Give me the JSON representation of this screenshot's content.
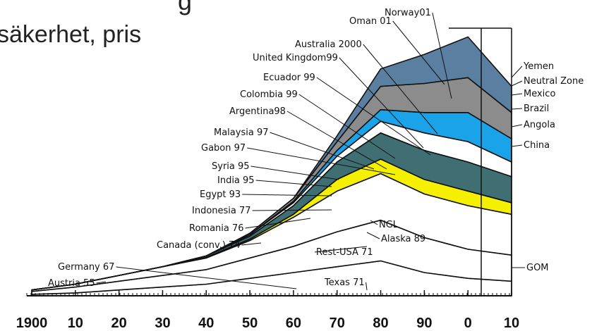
{
  "chart_data": {
    "type": "stacked_area",
    "title_fragment": "g",
    "subtitle": "säkerhet, pris",
    "x": [
      1900,
      1910,
      1920,
      1930,
      1940,
      1950,
      1960,
      1970,
      1980,
      1990,
      2000,
      2010
    ],
    "xlim": [
      1900,
      2010
    ],
    "xticks": [
      {
        "value": 1900,
        "label": "1900"
      },
      {
        "value": 1910,
        "label": "10"
      },
      {
        "value": 1920,
        "label": "20"
      },
      {
        "value": 1930,
        "label": "30"
      },
      {
        "value": 1940,
        "label": "40"
      },
      {
        "value": 1950,
        "label": "50"
      },
      {
        "value": 1960,
        "label": "60"
      },
      {
        "value": 1970,
        "label": "70"
      },
      {
        "value": 1980,
        "label": "80"
      },
      {
        "value": 1990,
        "label": "90"
      },
      {
        "value": 2000,
        "label": "0"
      },
      {
        "value": 2010,
        "label": "10"
      }
    ],
    "ylim": [
      0,
      92
    ],
    "series": [
      {
        "color": "#ffffff",
        "values": [
          0.5,
          1,
          2,
          3,
          4,
          6,
          8,
          10,
          12,
          8,
          6,
          5
        ]
      },
      {
        "color": "#ffffff",
        "values": [
          1,
          2,
          3,
          4,
          5,
          7,
          9,
          12,
          14,
          12,
          10,
          9
        ]
      },
      {
        "color": "#ffffff",
        "values": [
          0.5,
          1,
          2,
          3,
          4,
          6,
          10,
          14,
          16,
          15,
          15,
          14
        ]
      },
      {
        "color": "#f4f000",
        "values": [
          0,
          0,
          0,
          0,
          0.2,
          0.5,
          1,
          4,
          5,
          5,
          5,
          4
        ]
      },
      {
        "color": "#3f6f73",
        "values": [
          0,
          0,
          0,
          0,
          0.5,
          1,
          3,
          6,
          9,
          10,
          10,
          9
        ]
      },
      {
        "color": "#ffffff",
        "values": [
          0,
          0,
          0,
          0,
          0,
          0.5,
          1,
          2,
          4,
          6,
          7,
          5
        ]
      },
      {
        "color": "#1aa3e8",
        "values": [
          0,
          0,
          0,
          0,
          0,
          0,
          0.5,
          2,
          4,
          7,
          10,
          8
        ]
      },
      {
        "color": "#8c8c8c",
        "values": [
          0,
          0,
          0,
          0,
          0,
          0.5,
          1,
          3,
          8,
          10,
          12,
          9
        ]
      },
      {
        "color": "#5b7fa0",
        "values": [
          0,
          0,
          0,
          0,
          0,
          0,
          0,
          2,
          6,
          10,
          14,
          9
        ]
      }
    ],
    "annotations": [
      "Oman 01",
      "Norway01",
      "Australia 2000",
      "United Kingdom99",
      "Ecuador 99",
      "Colombia 99",
      "Argentina98",
      "Malaysia 97",
      "Gabon 97",
      "Syria 95",
      "India 95",
      "Egypt 93",
      "Indonesia 77",
      "Romania 76",
      "Canada (conv.) 74",
      "Germany 67",
      "Austria 55",
      "Rest-USA 71",
      "Texas 71",
      "NGL",
      "Alaska 89",
      "Yemen",
      "Neutral Zone",
      "Mexico",
      "Brazil",
      "Angola",
      "China",
      "GOM"
    ]
  }
}
